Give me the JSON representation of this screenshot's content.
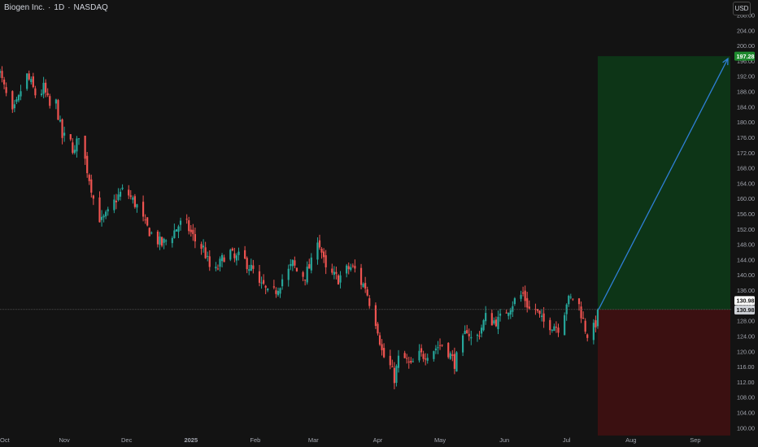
{
  "header": {
    "symbol": "Biogen Inc.",
    "interval": "1D",
    "exchange": "NASDAQ",
    "sep": "·",
    "currency": "USD"
  },
  "chart_data": {
    "type": "candlestick",
    "ylim": [
      98,
      210
    ],
    "y_ticks": [
      100,
      104,
      108,
      112,
      116,
      120,
      124,
      128,
      132,
      136,
      140,
      144,
      148,
      152,
      156,
      160,
      164,
      168,
      172,
      176,
      180,
      184,
      188,
      192,
      196,
      200,
      204,
      208
    ],
    "x_labels": [
      {
        "label": "Oct",
        "d": 0
      },
      {
        "label": "Nov",
        "d": 31
      },
      {
        "label": "Dec",
        "d": 61
      },
      {
        "label": "2025",
        "d": 92
      },
      {
        "label": "Feb",
        "d": 123
      },
      {
        "label": "Mar",
        "d": 151
      },
      {
        "label": "Apr",
        "d": 182
      },
      {
        "label": "May",
        "d": 212
      },
      {
        "label": "Jun",
        "d": 243
      },
      {
        "label": "Jul",
        "d": 273
      },
      {
        "label": "Aug",
        "d": 304
      },
      {
        "label": "Sep",
        "d": 335
      }
    ],
    "anchors": [
      [
        -1,
        194.5
      ],
      [
        3,
        187
      ],
      [
        6,
        182
      ],
      [
        9,
        186
      ],
      [
        12,
        193
      ],
      [
        15,
        190
      ],
      [
        18,
        186
      ],
      [
        21,
        189
      ],
      [
        24,
        184
      ],
      [
        27,
        185
      ],
      [
        30,
        176
      ],
      [
        33,
        176
      ],
      [
        36,
        172
      ],
      [
        38,
        177
      ],
      [
        41,
        170
      ],
      [
        44,
        163
      ],
      [
        46,
        157
      ],
      [
        49,
        154
      ],
      [
        52,
        156
      ],
      [
        56,
        160
      ],
      [
        59,
        162
      ],
      [
        62,
        161
      ],
      [
        66,
        158
      ],
      [
        70,
        153
      ],
      [
        74,
        150
      ],
      [
        78,
        148
      ],
      [
        82,
        150
      ],
      [
        86,
        153
      ],
      [
        89,
        154
      ],
      [
        92,
        151
      ],
      [
        95,
        148
      ],
      [
        98,
        147
      ],
      [
        101,
        142
      ],
      [
        104,
        141
      ],
      [
        107,
        144
      ],
      [
        110,
        147
      ],
      [
        113,
        144
      ],
      [
        116,
        145
      ],
      [
        119,
        143
      ],
      [
        122,
        141
      ],
      [
        125,
        137
      ],
      [
        127,
        137
      ],
      [
        130,
        134
      ],
      [
        133,
        136
      ],
      [
        136,
        139
      ],
      [
        139,
        141
      ],
      [
        141,
        143
      ],
      [
        144,
        140
      ],
      [
        147,
        140
      ],
      [
        150,
        143
      ],
      [
        152,
        152
      ],
      [
        155,
        146
      ],
      [
        157,
        141
      ],
      [
        160,
        140
      ],
      [
        163,
        139
      ],
      [
        166,
        141
      ],
      [
        169,
        142
      ],
      [
        172,
        141
      ],
      [
        174,
        138
      ],
      [
        176,
        137
      ],
      [
        178,
        133
      ],
      [
        180,
        130
      ],
      [
        182,
        126
      ],
      [
        184,
        120
      ],
      [
        186,
        117
      ],
      [
        188,
        116
      ],
      [
        190,
        113
      ],
      [
        192,
        118
      ],
      [
        195,
        118
      ],
      [
        198,
        116
      ],
      [
        201,
        119
      ],
      [
        204,
        119
      ],
      [
        207,
        120
      ],
      [
        210,
        121
      ],
      [
        213,
        122
      ],
      [
        216,
        120
      ],
      [
        219,
        117
      ],
      [
        222,
        121
      ],
      [
        225,
        126
      ],
      [
        228,
        122
      ],
      [
        231,
        125
      ],
      [
        234,
        129
      ],
      [
        237,
        128
      ],
      [
        240,
        128
      ],
      [
        243,
        130
      ],
      [
        246,
        132
      ],
      [
        249,
        134
      ],
      [
        252,
        135
      ],
      [
        255,
        131
      ],
      [
        258,
        131
      ],
      [
        261,
        128
      ],
      [
        264,
        127
      ],
      [
        267,
        127
      ],
      [
        270,
        126
      ],
      [
        273,
        133
      ],
      [
        276,
        134
      ],
      [
        279,
        132
      ],
      [
        282,
        126
      ],
      [
        284,
        123
      ],
      [
        286,
        126
      ],
      [
        288,
        129
      ]
    ],
    "current_price": "130.98",
    "position": {
      "entry": 130.98,
      "target": 197.28,
      "target_label": "197.28",
      "entry_label": "130.98",
      "stop": 98,
      "start_d": 288,
      "end_d": 345
    },
    "colors": {
      "up": "#26a69a",
      "down": "#ef5350",
      "profit_zone": "#0d3517",
      "loss_zone": "#3b1011",
      "arrow": "#2f7fd6",
      "target_tag": "#1e8a2e",
      "price_tag": "#ffffff",
      "grid_text": "#a3a6af"
    }
  }
}
